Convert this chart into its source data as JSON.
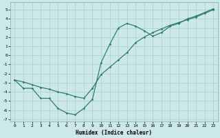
{
  "xlabel": "Humidex (Indice chaleur)",
  "bg_color": "#cce8e8",
  "grid_color": "#aacfcf",
  "line_color": "#2e7d6e",
  "xlim": [
    -0.5,
    23.5
  ],
  "ylim": [
    -7.2,
    5.8
  ],
  "yticks": [
    -7,
    -6,
    -5,
    -4,
    -3,
    -2,
    -1,
    0,
    1,
    2,
    3,
    4,
    5
  ],
  "xticks": [
    0,
    1,
    2,
    3,
    4,
    5,
    6,
    7,
    8,
    9,
    10,
    11,
    12,
    13,
    14,
    15,
    16,
    17,
    18,
    19,
    20,
    21,
    22,
    23
  ],
  "curve1_x": [
    0,
    1,
    2,
    3,
    4,
    5,
    6,
    7,
    8,
    9,
    10,
    11,
    12,
    13,
    14,
    15,
    16,
    17,
    18,
    19,
    20,
    21,
    22,
    23
  ],
  "curve1_y": [
    -2.7,
    -3.6,
    -3.6,
    -4.7,
    -4.7,
    -5.8,
    -6.3,
    -6.5,
    -5.8,
    -4.8,
    -0.8,
    1.2,
    3.0,
    3.5,
    3.2,
    2.7,
    2.1,
    2.5,
    3.2,
    3.5,
    4.0,
    4.3,
    4.7,
    5.1
  ],
  "curve2_x": [
    0,
    1,
    2,
    3,
    4,
    5,
    6,
    7,
    8,
    9,
    10,
    11,
    12,
    13,
    14,
    15,
    16,
    17,
    18,
    19,
    20,
    21,
    22,
    23
  ],
  "curve2_y": [
    -2.7,
    -2.9,
    -3.2,
    -3.5,
    -3.7,
    -4.0,
    -4.2,
    -4.5,
    -4.7,
    -3.6,
    -2.1,
    -1.3,
    -0.5,
    0.3,
    1.4,
    2.0,
    2.5,
    2.9,
    3.3,
    3.6,
    3.9,
    4.2,
    4.6,
    5.0
  ]
}
